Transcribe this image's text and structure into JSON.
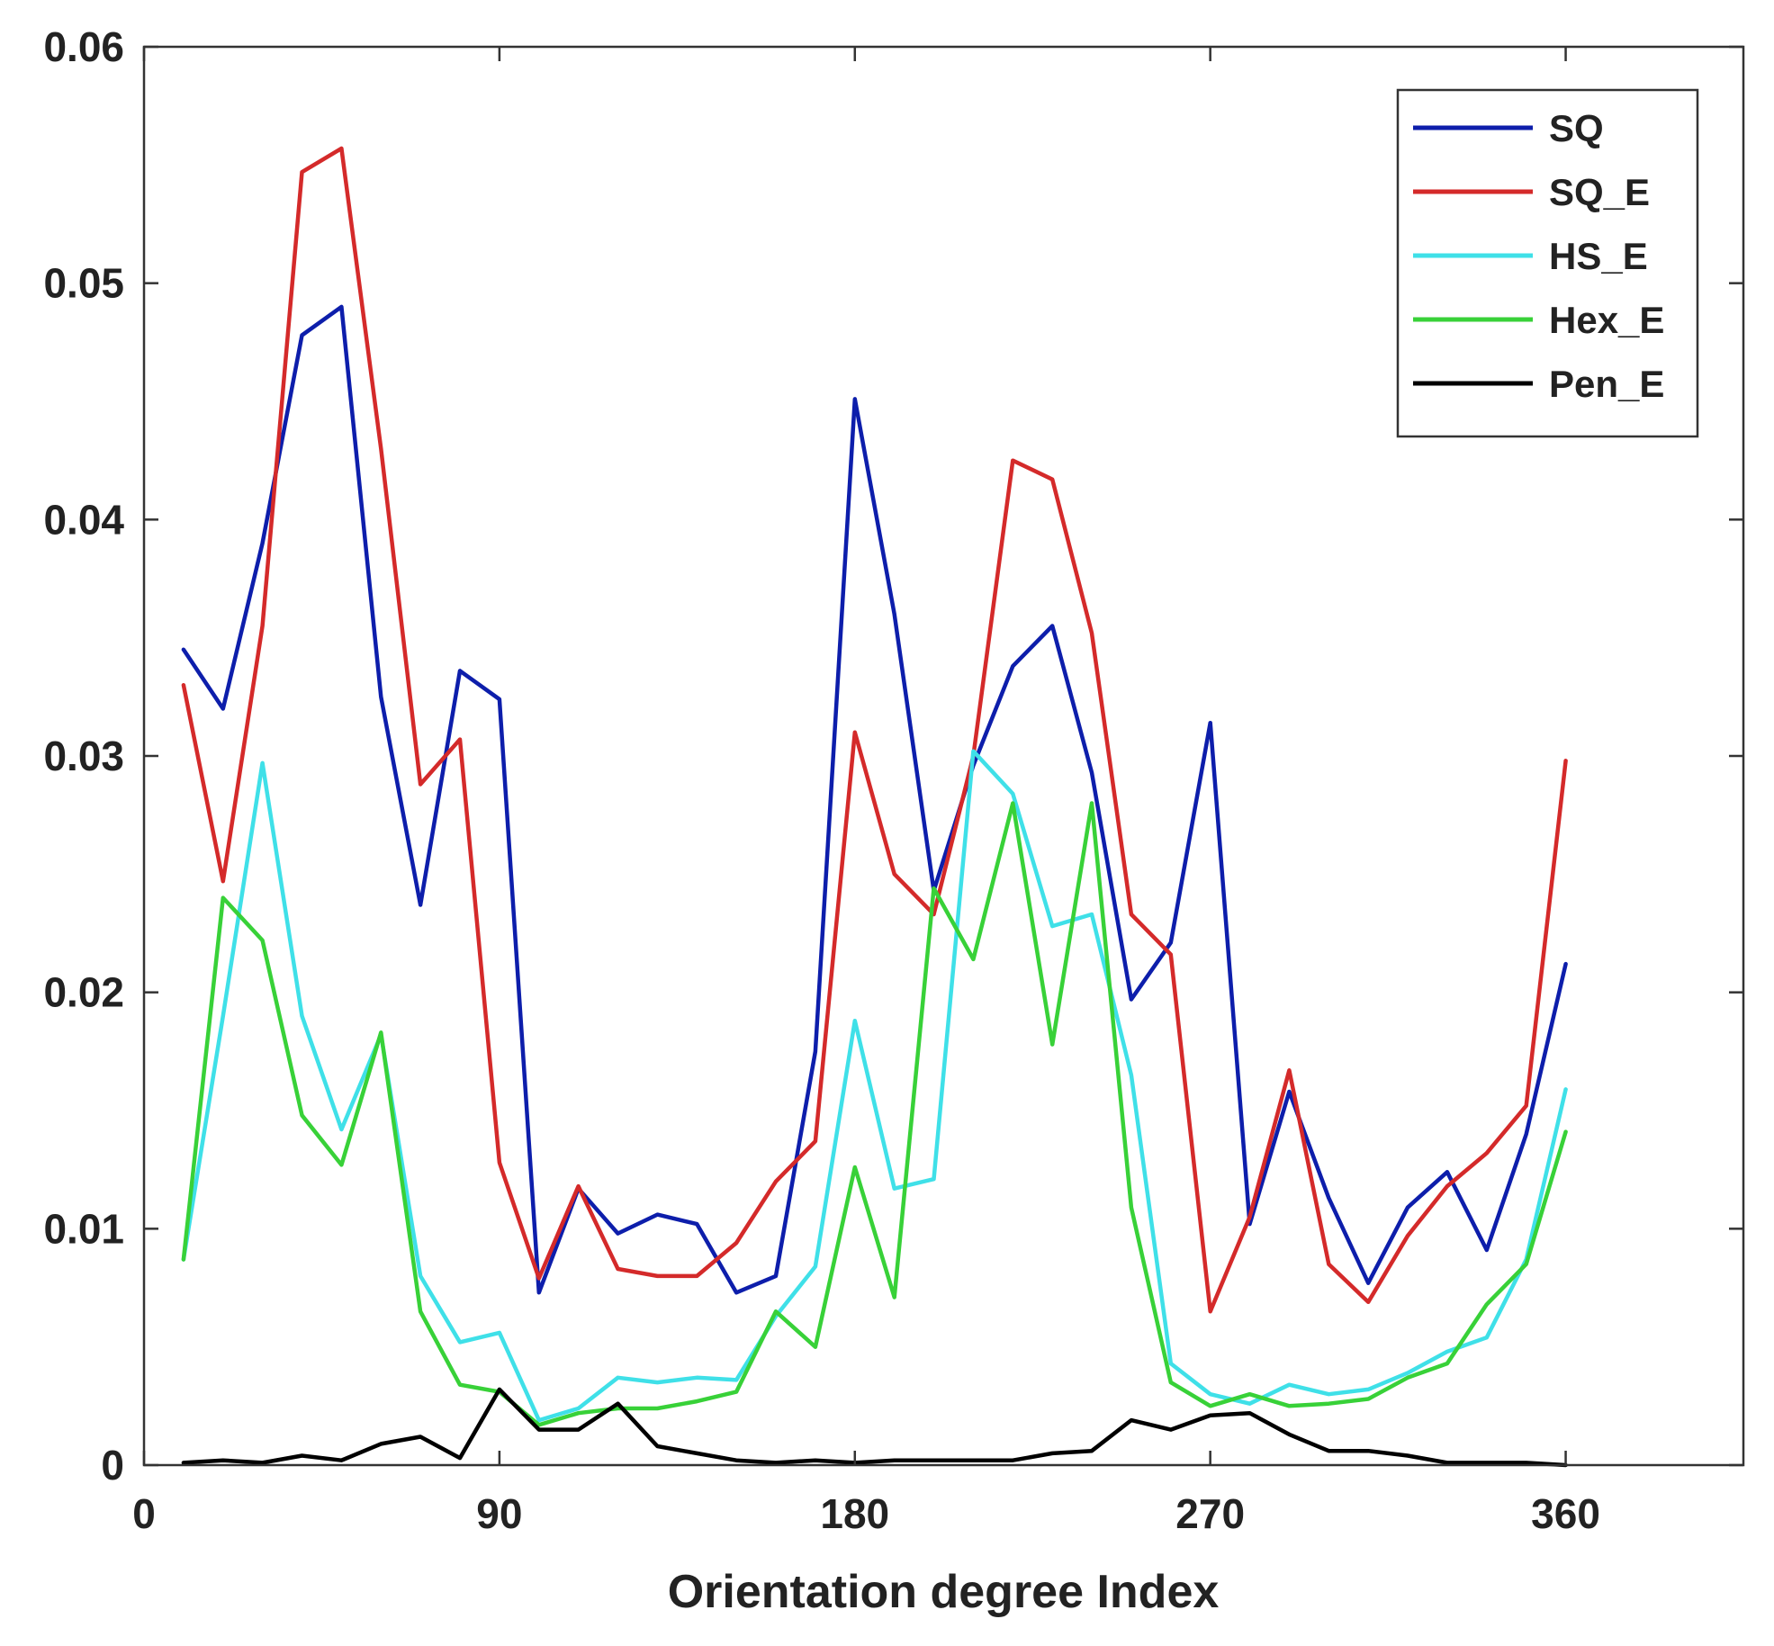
{
  "chart_data": {
    "type": "line",
    "title": "",
    "xlabel": "Orientation degree Index",
    "ylabel": "",
    "xlim": [
      0,
      405
    ],
    "ylim": [
      0,
      0.06
    ],
    "grid": false,
    "legend_placement": "top-right",
    "x_ticks": [
      0,
      90,
      180,
      270,
      360
    ],
    "x_tick_labels": [
      "0",
      "90",
      "180",
      "270",
      "360"
    ],
    "y_ticks": [
      0,
      0.01,
      0.02,
      0.03,
      0.04,
      0.05,
      0.06
    ],
    "y_tick_labels": [
      "0",
      "0.01",
      "0.02",
      "0.03",
      "0.04",
      "0.05",
      "0.06"
    ],
    "x": [
      10,
      20,
      30,
      40,
      50,
      60,
      70,
      80,
      90,
      100,
      110,
      120,
      130,
      140,
      150,
      160,
      170,
      180,
      190,
      200,
      210,
      220,
      230,
      240,
      250,
      260,
      270,
      280,
      290,
      300,
      310,
      320,
      330,
      340,
      350,
      360
    ],
    "series": [
      {
        "name": "SQ",
        "color": "#0d1eab",
        "values": [
          0.0345,
          0.032,
          0.039,
          0.0478,
          0.049,
          0.0325,
          0.0237,
          0.0336,
          0.0324,
          0.0073,
          0.0117,
          0.0098,
          0.0106,
          0.0102,
          0.0073,
          0.008,
          0.0175,
          0.0451,
          0.036,
          0.0243,
          0.0296,
          0.0338,
          0.0355,
          0.0293,
          0.0197,
          0.0221,
          0.0314,
          0.0102,
          0.0158,
          0.0113,
          0.0077,
          0.0109,
          0.0124,
          0.0091,
          0.014,
          0.0212
        ]
      },
      {
        "name": "SQ_E",
        "color": "#d42a2a",
        "values": [
          0.033,
          0.0247,
          0.0355,
          0.0547,
          0.0557,
          0.043,
          0.0288,
          0.0307,
          0.0128,
          0.0079,
          0.0118,
          0.0083,
          0.008,
          0.008,
          0.0094,
          0.012,
          0.0137,
          0.031,
          0.025,
          0.0233,
          0.03,
          0.0425,
          0.0417,
          0.0352,
          0.0233,
          0.0216,
          0.0065,
          0.0105,
          0.0167,
          0.0085,
          0.0069,
          0.0097,
          0.0118,
          0.0132,
          0.0152,
          0.0298
        ]
      },
      {
        "name": "HS_E",
        "color": "#3fe0e8",
        "values": [
          0.0087,
          0.019,
          0.0297,
          0.019,
          0.0142,
          0.0182,
          0.008,
          0.0052,
          0.0056,
          0.0019,
          0.0024,
          0.0037,
          0.0035,
          0.0037,
          0.0036,
          0.0063,
          0.0084,
          0.0188,
          0.0117,
          0.0121,
          0.0302,
          0.0284,
          0.0228,
          0.0233,
          0.0165,
          0.0043,
          0.003,
          0.0026,
          0.0034,
          0.003,
          0.0032,
          0.0039,
          0.0048,
          0.0054,
          0.0087,
          0.0159
        ]
      },
      {
        "name": "Hex_E",
        "color": "#38d138",
        "values": [
          0.0087,
          0.024,
          0.0222,
          0.0148,
          0.0127,
          0.0183,
          0.0065,
          0.0034,
          0.0031,
          0.0017,
          0.0022,
          0.0024,
          0.0024,
          0.0027,
          0.0031,
          0.0065,
          0.005,
          0.0126,
          0.0071,
          0.0244,
          0.0214,
          0.028,
          0.0178,
          0.028,
          0.0109,
          0.0035,
          0.0025,
          0.003,
          0.0025,
          0.0026,
          0.0028,
          0.0037,
          0.0043,
          0.0068,
          0.0085,
          0.0141
        ]
      },
      {
        "name": "Pen_E",
        "color": "#000000",
        "values": [
          0.0001,
          0.0002,
          0.0001,
          0.0004,
          0.0002,
          0.0009,
          0.0012,
          0.0003,
          0.0032,
          0.0015,
          0.0015,
          0.0026,
          0.0008,
          0.0005,
          0.0002,
          0.0001,
          0.0002,
          0.0001,
          0.0002,
          0.0002,
          0.0002,
          0.0002,
          0.0005,
          0.0006,
          0.0019,
          0.0015,
          0.0021,
          0.0022,
          0.0013,
          0.0006,
          0.0006,
          0.0004,
          0.0001,
          0.0001,
          0.0001,
          0.0
        ]
      }
    ]
  }
}
